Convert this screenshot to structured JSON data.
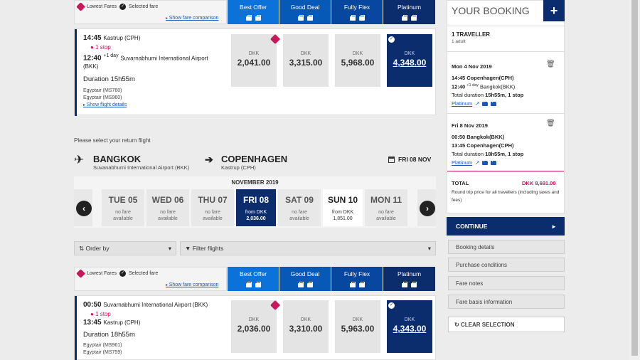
{
  "top_list": {
    "legend_lowest": "Lowest Fares",
    "legend_selected": "Selected fare",
    "show_fare_comparison": "Show fare comparison",
    "columns": [
      "Best Offer",
      "Good Deal",
      "Fully Flex",
      "Platinum"
    ],
    "flight": {
      "dep_time": "14:45",
      "dep_airport": "Kastrup (CPH)",
      "stops": "1 stop",
      "arr_time": "12:40",
      "arr_plus": "+1 day",
      "arr_airport": "Suvarnabhumi International Airport",
      "arr_code": "(BKK)",
      "duration": "Duration 15h55m",
      "carrier1": "Egyptair (MS760)",
      "carrier2": "Egyptair (MS960)",
      "details": "Show flight details",
      "fares": [
        {
          "currency": "DKK",
          "amount": "2,041.00"
        },
        {
          "currency": "DKK",
          "amount": "3,315.00"
        },
        {
          "currency": "DKK",
          "amount": "5,968.00"
        },
        {
          "currency": "DKK",
          "amount": "4,348.00"
        }
      ]
    }
  },
  "return_section": {
    "prompt": "Please select your return flight",
    "from_city": "BANGKOK",
    "from_airport": "Suvanabhumi International Airport (BKK)",
    "to_city": "COPENHAGEN",
    "to_airport": "Kastrup (CPH)",
    "date": "FRI 08 NOV",
    "month": "NOVEMBER 2019",
    "days": [
      {
        "name": "TUE 05",
        "l1": "no fare",
        "l2": "available"
      },
      {
        "name": "WED 06",
        "l1": "no fare",
        "l2": "available"
      },
      {
        "name": "THU 07",
        "l1": "no fare",
        "l2": "available"
      },
      {
        "name": "FRI 08",
        "l1": "from DKK",
        "l2": "2,036.00"
      },
      {
        "name": "SAT 09",
        "l1": "no fare",
        "l2": "available"
      },
      {
        "name": "SUN 10",
        "l1": "from DKK",
        "l2": "1,851.00"
      },
      {
        "name": "MON 11",
        "l1": "no fare",
        "l2": "available"
      }
    ],
    "order_by": "Order by",
    "filter": "Filter flights"
  },
  "bottom_list": {
    "legend_lowest": "Lowest Fares",
    "legend_selected": "Selected fare",
    "show_fare_comparison": "Show fare comparison",
    "columns": [
      "Best Offer",
      "Good Deal",
      "Fully Flex",
      "Platinum"
    ],
    "flight": {
      "dep_time": "00:50",
      "dep_airport": "Suvarnabhumi International Airport (BKK)",
      "stops": "1 stop",
      "arr_time": "13:45",
      "arr_airport": "Kastrup (CPH)",
      "duration": "Duration 18h55m",
      "carrier1": "Egyptair (MS961)",
      "carrier2": "Egyptair (MS759)",
      "fares": [
        {
          "currency": "DKK",
          "amount": "2,036.00"
        },
        {
          "currency": "DKK",
          "amount": "3,310.00"
        },
        {
          "currency": "DKK",
          "amount": "5,963.00"
        },
        {
          "currency": "DKK",
          "amount": "4,343.00"
        }
      ]
    }
  },
  "booking": {
    "title": "YOUR BOOKING",
    "plus": "+",
    "traveller": "1 TRAVELLER",
    "traveller_sub": "1 adult",
    "out_date": "Mon 4 Nov 2019",
    "out_dep": "14:45 Copenhagen(CPH)",
    "out_arr_time": "12:40",
    "out_arr_plus": "+1 day",
    "out_arr_place": "Bangkok(BKK)",
    "out_dur_prefix": "Total duration",
    "out_dur": "15h55m, 1 stop",
    "out_fare": "Platinum",
    "ret_date": "Fri 8 Nov 2019",
    "ret_dep": "00:50 Bangkok(BKK)",
    "ret_arr": "13:45 Copenhagen(CPH)",
    "ret_dur_prefix": "Total duration",
    "ret_dur": "18h55m, 1 stop",
    "ret_fare": "Platinum",
    "total_label": "TOTAL",
    "total_value": "DKK 8,691.00",
    "total_note": "Round trip price for all travellers (including taxes and fees)",
    "continue": "CONTINUE",
    "links": [
      "Booking details",
      "Purchase conditions",
      "Fare notes",
      "Fare basis information"
    ],
    "clear": "CLEAR SELECTION"
  },
  "colors": {
    "col1": "#0a72d8",
    "col2": "#0759b8",
    "col3": "#0747a0",
    "col4": "#0b2d6e",
    "accent": "#c8185c"
  }
}
